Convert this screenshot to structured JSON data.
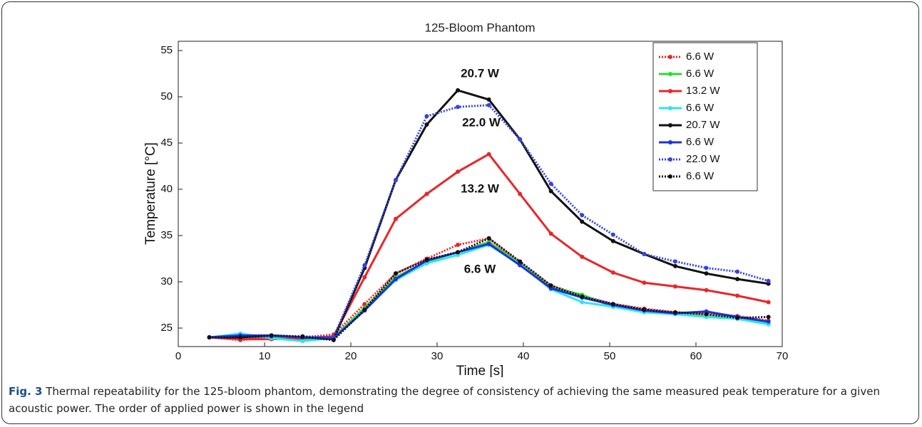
{
  "chart_data": {
    "type": "line",
    "title": "125-Bloom Phantom",
    "xlabel": "Time [s]",
    "ylabel": "Temperature [°C]",
    "x": [
      3.6,
      7.2,
      10.8,
      14.4,
      18,
      21.6,
      25.2,
      28.8,
      32.4,
      36,
      39.6,
      43.2,
      46.8,
      50.4,
      54,
      57.6,
      61.2,
      64.8,
      68.4
    ],
    "xlim": [
      0,
      70
    ],
    "xticks": [
      0,
      10,
      20,
      30,
      40,
      50,
      60,
      70
    ],
    "ylim": [
      23,
      56
    ],
    "yticks": [
      25,
      30,
      35,
      40,
      45,
      50,
      55
    ],
    "grid": false,
    "legend": "upper right",
    "series": [
      {
        "name": "6.6 W",
        "color": "#e8262a",
        "style": "dotted",
        "values": [
          24,
          23.7,
          24,
          24,
          24.3,
          27.6,
          30.9,
          32.5,
          34,
          34.7,
          32.1,
          29.6,
          28.5,
          27.6,
          27.1,
          26.7,
          26.6,
          26.3,
          25.8
        ]
      },
      {
        "name": "6.6 W",
        "color": "#2ed82e",
        "style": "solid",
        "values": [
          24,
          24.1,
          24,
          23.8,
          24,
          27.2,
          30.5,
          32.2,
          33.2,
          34.3,
          32,
          29.4,
          28.6,
          27.3,
          26.8,
          26.6,
          26.3,
          26.1,
          25.5
        ]
      },
      {
        "name": "13.2 W",
        "color": "#e8262a",
        "style": "solid",
        "values": [
          24,
          23.8,
          23.8,
          23.9,
          24.1,
          30.5,
          36.8,
          39.5,
          41.9,
          43.8,
          39.5,
          35.2,
          32.7,
          31,
          29.9,
          29.5,
          29.1,
          28.5,
          27.8
        ]
      },
      {
        "name": "6.6 W",
        "color": "#2ee6ea",
        "style": "solid",
        "values": [
          24,
          24.4,
          23.9,
          23.6,
          23.9,
          27,
          30.2,
          32,
          32.9,
          34,
          31.9,
          29.2,
          27.8,
          27.3,
          26.7,
          26.5,
          26.2,
          26,
          25.4
        ]
      },
      {
        "name": "20.7 W",
        "color": "#111111",
        "style": "solid",
        "values": [
          24,
          24,
          24.2,
          24,
          23.8,
          31.5,
          41,
          47,
          50.7,
          49.7,
          45.4,
          39.8,
          36.5,
          34.4,
          33,
          31.7,
          30.9,
          30.3,
          29.8
        ]
      },
      {
        "name": "6.6 W",
        "color": "#1f2fe0",
        "style": "solid",
        "values": [
          24,
          24.2,
          24.2,
          24,
          23.9,
          26.9,
          30.3,
          32.3,
          33.2,
          34.1,
          31.8,
          29.3,
          28.3,
          27.5,
          26.9,
          26.6,
          26.8,
          26.2,
          25.7
        ]
      },
      {
        "name": "22.0 W",
        "color": "#3344dd",
        "style": "dotted",
        "values": [
          24,
          24,
          24.1,
          24.1,
          24,
          31.8,
          41,
          47.9,
          48.9,
          49.1,
          45.4,
          40.6,
          37.2,
          35.1,
          33,
          32.2,
          31.5,
          31.1,
          30.1
        ]
      },
      {
        "name": "6.6 W",
        "color": "#111111",
        "style": "dotted",
        "values": [
          24,
          24,
          24.2,
          24.1,
          23.7,
          27,
          30.9,
          32.4,
          33.2,
          34.7,
          32.2,
          29.6,
          28.4,
          27.6,
          27,
          26.7,
          26.5,
          26.1,
          26.2
        ]
      }
    ],
    "annotations": [
      "20.7 W",
      "22.0 W",
      "13.2 W",
      "6.6 W"
    ]
  },
  "caption": {
    "label": "Fig. 3",
    "text": "Thermal repeatability for the 125-bloom phantom, demonstrating the degree of consistency of achieving the same measured peak temperature for a given acoustic power. The order of applied power is shown in the legend"
  }
}
